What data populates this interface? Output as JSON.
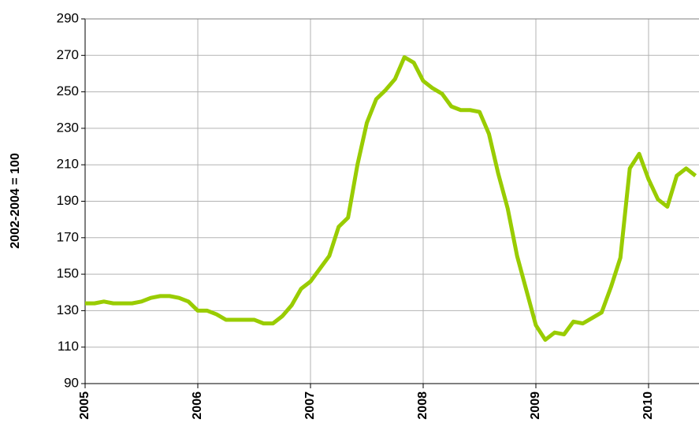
{
  "chart_data": {
    "type": "line",
    "y_label": "2002-2004 = 100",
    "categories": [
      "2005",
      null,
      null,
      null,
      null,
      null,
      null,
      null,
      null,
      null,
      null,
      null,
      "2006",
      null,
      null,
      null,
      null,
      null,
      null,
      null,
      null,
      null,
      null,
      null,
      "2007",
      null,
      null,
      null,
      null,
      null,
      null,
      null,
      null,
      null,
      null,
      null,
      "2008",
      null,
      null,
      null,
      null,
      null,
      null,
      null,
      null,
      null,
      null,
      null,
      "2009",
      null,
      null,
      null,
      null,
      null,
      null,
      null,
      null,
      null,
      null,
      null,
      "2010",
      null,
      null,
      null,
      null,
      null
    ],
    "values": [
      134,
      134,
      135,
      134,
      134,
      134,
      135,
      137,
      138,
      138,
      137,
      135,
      130,
      130,
      128,
      125,
      125,
      125,
      125,
      123,
      123,
      127,
      133,
      142,
      146,
      153,
      160,
      176,
      181,
      210,
      233,
      246,
      251,
      257,
      269,
      266,
      256,
      252,
      249,
      242,
      240,
      240,
      239,
      227,
      205,
      186,
      160,
      141,
      122,
      114,
      118,
      117,
      124,
      123,
      126,
      129,
      143,
      159,
      208,
      216,
      202,
      191,
      187,
      204,
      208,
      204
    ],
    "color": "#99cc00",
    "ylim": [
      90,
      290
    ],
    "yticks": [
      90,
      110,
      130,
      150,
      170,
      190,
      210,
      230,
      250,
      270,
      290
    ],
    "grid": true
  }
}
